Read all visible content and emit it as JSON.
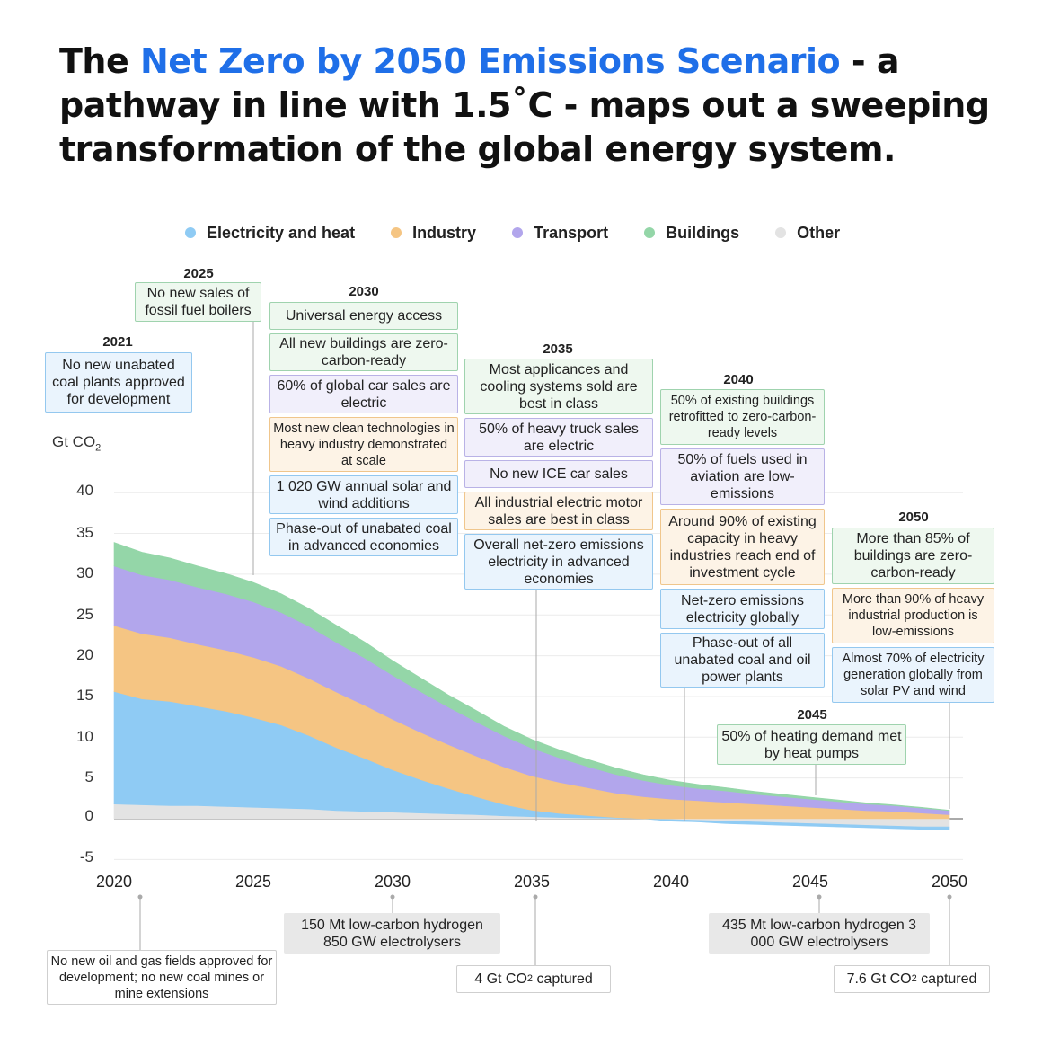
{
  "title": {
    "pre": "The ",
    "highlight": "Net Zero by 2050 Emissions Scenario",
    "post": " - a pathway in line with 1.5˚C - maps out a sweeping transformation of the global energy system."
  },
  "legend": [
    {
      "label": "Electricity and heat",
      "color": "#8fcbf4"
    },
    {
      "label": "Industry",
      "color": "#f5c583"
    },
    {
      "label": "Transport",
      "color": "#b2a6ec"
    },
    {
      "label": "Buildings",
      "color": "#94d6a8"
    },
    {
      "label": "Other",
      "color": "#e3e3e3"
    }
  ],
  "chart_data": {
    "type": "area",
    "stacked": true,
    "ylabel_main": "Gt CO",
    "ylabel_sub": "2",
    "ylim": [
      -5,
      40
    ],
    "y_ticks": [
      "40",
      "35",
      "30",
      "25",
      "20",
      "15",
      "10",
      "5",
      "0",
      "-5"
    ],
    "x_ticks": [
      "2020",
      "2025",
      "2030",
      "2035",
      "2040",
      "2045",
      "2050"
    ],
    "x": [
      2020,
      2021,
      2022,
      2023,
      2024,
      2025,
      2026,
      2027,
      2028,
      2029,
      2030,
      2031,
      2032,
      2033,
      2034,
      2035,
      2036,
      2037,
      2038,
      2039,
      2040,
      2041,
      2042,
      2043,
      2044,
      2045,
      2046,
      2047,
      2048,
      2049,
      2050
    ],
    "series": [
      {
        "name": "Other",
        "color": "#e3e3e3",
        "values": [
          1.8,
          1.7,
          1.6,
          1.6,
          1.5,
          1.4,
          1.3,
          1.2,
          1.0,
          0.9,
          0.8,
          0.7,
          0.6,
          0.5,
          0.35,
          0.25,
          0.15,
          0.1,
          0.05,
          0.0,
          -0.1,
          -0.2,
          -0.3,
          -0.4,
          -0.5,
          -0.6,
          -0.7,
          -0.8,
          -0.9,
          -1.0,
          -1.0
        ]
      },
      {
        "name": "Electricity and heat",
        "color": "#8fcbf4",
        "values": [
          13.8,
          13.0,
          12.8,
          12.2,
          11.7,
          11.0,
          10.2,
          9.0,
          7.7,
          6.5,
          5.2,
          4.1,
          3.1,
          2.2,
          1.4,
          0.8,
          0.5,
          0.3,
          0.1,
          0.0,
          -0.2,
          -0.2,
          -0.3,
          -0.3,
          -0.3,
          -0.3,
          -0.3,
          -0.3,
          -0.3,
          -0.3,
          -0.3
        ]
      },
      {
        "name": "Industry",
        "color": "#f5c583",
        "values": [
          8.1,
          8.0,
          7.8,
          7.6,
          7.5,
          7.4,
          7.2,
          7.0,
          6.8,
          6.5,
          6.2,
          5.8,
          5.4,
          5.0,
          4.6,
          4.2,
          3.8,
          3.4,
          3.0,
          2.7,
          2.4,
          2.2,
          2.0,
          1.8,
          1.6,
          1.4,
          1.2,
          1.0,
          0.9,
          0.7,
          0.5
        ]
      },
      {
        "name": "Transport",
        "color": "#b2a6ec",
        "values": [
          7.3,
          7.2,
          7.1,
          7.0,
          6.9,
          6.8,
          6.6,
          6.4,
          6.1,
          5.8,
          5.4,
          5.0,
          4.6,
          4.2,
          3.8,
          3.4,
          3.0,
          2.6,
          2.3,
          2.0,
          1.7,
          1.5,
          1.4,
          1.2,
          1.1,
          1.0,
          0.9,
          0.8,
          0.7,
          0.6,
          0.5
        ]
      },
      {
        "name": "Buildings",
        "color": "#94d6a8",
        "values": [
          2.9,
          2.8,
          2.7,
          2.6,
          2.5,
          2.4,
          2.3,
          2.2,
          2.1,
          2.0,
          1.8,
          1.7,
          1.5,
          1.4,
          1.2,
          1.1,
          1.0,
          0.9,
          0.8,
          0.7,
          0.6,
          0.5,
          0.4,
          0.35,
          0.3,
          0.25,
          0.2,
          0.15,
          0.1,
          0.1,
          0.05
        ]
      }
    ]
  },
  "milestones": {
    "y2021": {
      "year": "2021",
      "items": [
        {
          "text": "No new unabated coal plants approved for development",
          "color": "blue"
        }
      ]
    },
    "y2025": {
      "year": "2025",
      "items": [
        {
          "text": "No new sales of fossil fuel boilers",
          "color": "green"
        }
      ]
    },
    "y2030": {
      "year": "2030",
      "items": [
        {
          "text": "Universal energy access",
          "color": "green"
        },
        {
          "text": "All new buildings are zero-carbon-ready",
          "color": "green"
        },
        {
          "text": "60% of global car sales are electric",
          "color": "purple"
        },
        {
          "text": "Most new clean technologies in heavy industry demonstrated at scale",
          "color": "orange"
        },
        {
          "text": "1 020 GW annual solar and wind additions",
          "color": "blue"
        },
        {
          "text": "Phase-out of unabated coal in advanced economies",
          "color": "blue"
        }
      ]
    },
    "y2035": {
      "year": "2035",
      "items": [
        {
          "text": "Most applicances and cooling systems sold are best in class",
          "color": "green"
        },
        {
          "text": "50% of heavy truck sales are electric",
          "color": "purple"
        },
        {
          "text": "No new ICE car sales",
          "color": "purple"
        },
        {
          "text": "All industrial electric motor sales are best in class",
          "color": "orange"
        },
        {
          "text": "Overall net-zero emissions electricity in advanced economies",
          "color": "blue"
        }
      ]
    },
    "y2040": {
      "year": "2040",
      "items": [
        {
          "text": "50% of existing buildings retrofitted to zero-carbon-ready levels",
          "color": "green"
        },
        {
          "text": "50% of fuels used in aviation are low-emissions",
          "color": "purple"
        },
        {
          "text": "Around 90% of existing capacity in heavy industries reach end of investment cycle",
          "color": "orange"
        },
        {
          "text": "Net-zero emissions electricity globally",
          "color": "blue"
        },
        {
          "text": "Phase-out of all unabated coal and oil power plants",
          "color": "blue"
        }
      ]
    },
    "y2045": {
      "year": "2045",
      "items": [
        {
          "text": "50% of heating demand met by heat pumps",
          "color": "green"
        }
      ]
    },
    "y2050": {
      "year": "2050",
      "items": [
        {
          "text": "More than 85% of buildings are zero-carbon-ready",
          "color": "green"
        },
        {
          "text": "More than 90% of heavy industrial production is low-emissions",
          "color": "orange"
        },
        {
          "text": "Almost 70% of electricity generation globally from solar PV and wind",
          "color": "blue"
        }
      ]
    }
  },
  "bottom": {
    "b2020": "No new oil and gas fields approved for development; no new coal mines or mine extensions",
    "b2030": "150 Mt low-carbon hydrogen 850 GW electrolysers",
    "b2035_pre": "4 Gt CO",
    "b2035_sub": "2",
    "b2035_post": " captured",
    "b2045": "435 Mt low-carbon hydrogen 3 000 GW electrolysers",
    "b2050_pre": "7.6 Gt CO",
    "b2050_sub": "2",
    "b2050_post": " captured"
  }
}
